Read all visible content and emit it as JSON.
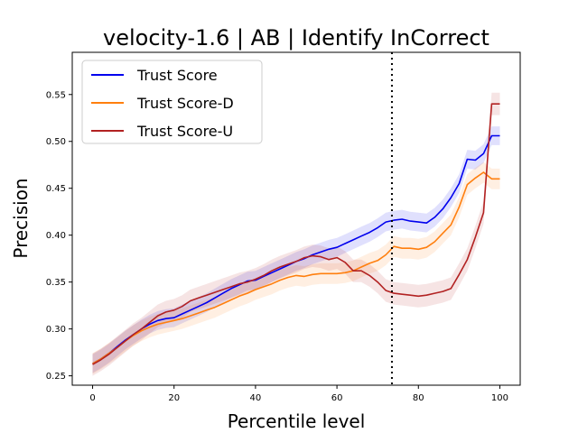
{
  "chart_data": {
    "type": "line",
    "title": "velocity-1.6 | AB | Identify InCorrect",
    "xlabel": "Percentile level",
    "ylabel": "Precision",
    "xlim": [
      -5,
      105
    ],
    "ylim": [
      0.24,
      0.595
    ],
    "xticks": [
      0,
      20,
      40,
      60,
      80,
      100
    ],
    "yticks": [
      0.25,
      0.3,
      0.35,
      0.4,
      0.45,
      0.5,
      0.55
    ],
    "ytick_labels": [
      "0.25",
      "0.30",
      "0.35",
      "0.40",
      "0.45",
      "0.50",
      "0.55"
    ],
    "grid": false,
    "legend_position": "top-left",
    "vline": {
      "x": 73.5,
      "style": "dotted",
      "color": "#000000"
    },
    "x": [
      0,
      2,
      4,
      6,
      8,
      10,
      12,
      14,
      16,
      18,
      20,
      22,
      24,
      26,
      28,
      30,
      32,
      34,
      36,
      38,
      40,
      42,
      44,
      46,
      48,
      50,
      52,
      54,
      56,
      58,
      60,
      62,
      64,
      66,
      68,
      70,
      72,
      74,
      76,
      78,
      80,
      82,
      84,
      86,
      88,
      90,
      92,
      94,
      96,
      98,
      100
    ],
    "series": [
      {
        "name": "Trust Score",
        "color": "#0000ee",
        "values": [
          0.263,
          0.268,
          0.274,
          0.281,
          0.288,
          0.294,
          0.3,
          0.305,
          0.309,
          0.311,
          0.312,
          0.316,
          0.32,
          0.324,
          0.328,
          0.333,
          0.338,
          0.343,
          0.347,
          0.351,
          0.352,
          0.356,
          0.36,
          0.364,
          0.368,
          0.372,
          0.375,
          0.379,
          0.382,
          0.385,
          0.387,
          0.391,
          0.395,
          0.399,
          0.403,
          0.408,
          0.414,
          0.416,
          0.417,
          0.415,
          0.414,
          0.413,
          0.419,
          0.428,
          0.44,
          0.455,
          0.481,
          0.48,
          0.487,
          0.506,
          0.506
        ],
        "band": 0.01
      },
      {
        "name": "Trust Score-D",
        "color": "#ff7f0e",
        "values": [
          0.263,
          0.268,
          0.274,
          0.28,
          0.287,
          0.293,
          0.298,
          0.302,
          0.305,
          0.307,
          0.309,
          0.311,
          0.314,
          0.317,
          0.32,
          0.323,
          0.327,
          0.331,
          0.335,
          0.338,
          0.342,
          0.345,
          0.348,
          0.352,
          0.355,
          0.357,
          0.356,
          0.358,
          0.359,
          0.359,
          0.359,
          0.36,
          0.362,
          0.366,
          0.37,
          0.373,
          0.379,
          0.388,
          0.386,
          0.386,
          0.385,
          0.387,
          0.393,
          0.402,
          0.411,
          0.43,
          0.454,
          0.461,
          0.467,
          0.46,
          0.46
        ],
        "band": 0.011
      },
      {
        "name": "Trust Score-U",
        "color": "#b22222",
        "values": [
          0.262,
          0.267,
          0.273,
          0.28,
          0.287,
          0.294,
          0.3,
          0.307,
          0.314,
          0.318,
          0.32,
          0.324,
          0.33,
          0.333,
          0.336,
          0.339,
          0.342,
          0.345,
          0.348,
          0.35,
          0.353,
          0.357,
          0.362,
          0.366,
          0.369,
          0.372,
          0.376,
          0.378,
          0.377,
          0.374,
          0.376,
          0.371,
          0.362,
          0.362,
          0.357,
          0.35,
          0.341,
          0.338,
          0.337,
          0.336,
          0.335,
          0.336,
          0.338,
          0.34,
          0.343,
          0.358,
          0.374,
          0.398,
          0.424,
          0.54,
          0.54
        ],
        "band": 0.012
      }
    ]
  }
}
